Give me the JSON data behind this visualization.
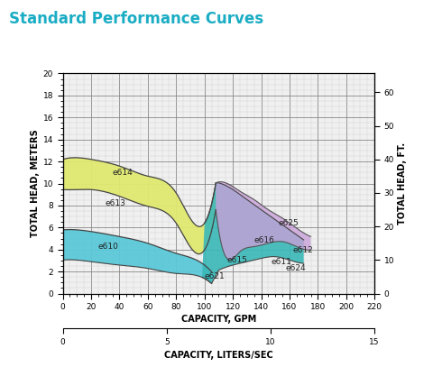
{
  "title": "Standard Performance Curves",
  "title_color": "#1badc4",
  "bg_color": "#ffffff",
  "plot_bg": "#f0f0f0",
  "grid_major_color": "#888888",
  "grid_minor_color": "#cccccc",
  "xlim": [
    0,
    220
  ],
  "ylim": [
    0,
    20
  ],
  "xticks_major": [
    0,
    20,
    40,
    60,
    80,
    100,
    120,
    140,
    160,
    180,
    200,
    220
  ],
  "xticks_minor_step": 5,
  "yticks_major_m": [
    0,
    2,
    4,
    6,
    8,
    10,
    12,
    14,
    16,
    18,
    20
  ],
  "yticks_major_ft": [
    0,
    10,
    20,
    30,
    40,
    50,
    60
  ],
  "yticks_minor_step_m": 0.5,
  "ylabel_left": "TOTAL HEAD, METERS",
  "ylabel_right": "TOTAL HEAD, FT.",
  "xlabel_gpm": "CAPACITY, GPM",
  "xlabel_lps": "CAPACITY, LITERS/SEC",
  "xticks_lps": [
    0,
    5,
    10,
    15
  ],
  "ft_to_m": 0.3048,
  "gpm_to_lps": 0.06309,
  "e614_upper_x": [
    0,
    10,
    20,
    40,
    60,
    80,
    100,
    108
  ],
  "e614_upper_y_ft": [
    40,
    40.5,
    40,
    38,
    35,
    30,
    21,
    33
  ],
  "e613_upper_x": [
    0,
    10,
    20,
    40,
    60,
    80,
    100,
    108
  ],
  "e613_upper_y_ft": [
    31,
    31,
    31,
    29,
    26,
    21,
    13,
    25
  ],
  "e610_upper_x": [
    0,
    10,
    20,
    40,
    60,
    80,
    100,
    105
  ],
  "e610_upper_y_ft": [
    19,
    19,
    18.5,
    17,
    15,
    12,
    8.5,
    6.5
  ],
  "e610_lower_x": [
    0,
    10,
    20,
    40,
    60,
    80,
    100,
    105
  ],
  "e610_lower_y_ft": [
    10,
    10,
    9.5,
    8.5,
    7.5,
    6,
    4.5,
    3
  ],
  "teal_upper_x": [
    100,
    105,
    110,
    120,
    130,
    140,
    150,
    160,
    170
  ],
  "teal_upper_y_ft": [
    6.5,
    6.5,
    33,
    31,
    28,
    25,
    22,
    19,
    16
  ],
  "teal_lower_x": [
    100,
    105,
    110,
    120,
    130,
    140,
    150,
    160,
    170
  ],
  "teal_lower_y_ft": [
    3,
    3,
    7,
    8.5,
    9.5,
    10.5,
    11,
    10,
    9
  ],
  "purple_upper_x": [
    108,
    115,
    125,
    135,
    145,
    155,
    165,
    175
  ],
  "purple_upper_y_ft": [
    33,
    33,
    30.5,
    28,
    25,
    22.5,
    19.5,
    17
  ],
  "purple_lower_x": [
    108,
    115,
    125,
    135,
    145,
    155,
    165,
    175
  ],
  "purple_lower_y_ft": [
    25,
    11,
    12.5,
    14,
    15,
    15.5,
    14,
    13
  ],
  "yellow_color": "#e0e870",
  "blue_color": "#5ac8d8",
  "teal_color": "#3ab8b8",
  "purple_color": "#c8a0d8",
  "labels": [
    {
      "text": "e614",
      "x": 35,
      "y_ft": 36,
      "ha": "left"
    },
    {
      "text": "e613",
      "x": 30,
      "y_ft": 27,
      "ha": "left"
    },
    {
      "text": "e610",
      "x": 25,
      "y_ft": 14,
      "ha": "left"
    },
    {
      "text": "e621",
      "x": 100,
      "y_ft": 5,
      "ha": "left"
    },
    {
      "text": "e615",
      "x": 116,
      "y_ft": 10,
      "ha": "left"
    },
    {
      "text": "e616",
      "x": 135,
      "y_ft": 16,
      "ha": "left"
    },
    {
      "text": "e625",
      "x": 152,
      "y_ft": 21,
      "ha": "left"
    },
    {
      "text": "e611",
      "x": 147,
      "y_ft": 9.5,
      "ha": "left"
    },
    {
      "text": "e612",
      "x": 162,
      "y_ft": 13,
      "ha": "left"
    },
    {
      "text": "e624",
      "x": 157,
      "y_ft": 7.5,
      "ha": "left"
    }
  ]
}
